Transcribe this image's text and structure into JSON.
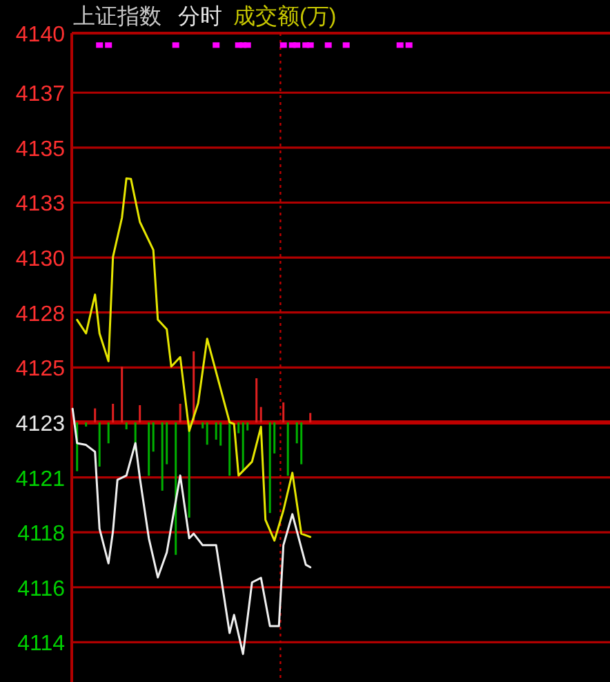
{
  "chart_data": {
    "type": "line",
    "title": "上证指数",
    "subtitle": "分时",
    "annotations": [
      "成交额(万)"
    ],
    "categories": [
      null,
      null,
      null,
      null,
      null,
      null,
      null,
      null,
      null,
      null,
      null,
      null,
      null,
      null,
      null,
      null,
      null,
      null,
      null,
      null,
      null,
      null,
      null,
      null,
      null,
      null,
      null,
      null,
      null,
      null,
      null,
      null,
      null,
      null,
      null,
      null,
      null,
      null,
      null,
      null,
      null,
      null,
      null,
      null,
      null,
      null,
      null,
      null,
      null,
      null,
      null,
      null,
      null,
      null,
      null,
      null,
      null,
      null,
      null,
      null,
      null,
      null,
      null,
      null,
      null,
      null,
      null,
      null,
      null,
      null,
      null,
      null,
      null,
      null,
      null,
      null,
      null,
      null,
      null,
      null,
      null,
      null,
      null,
      null,
      null,
      null,
      null,
      null,
      null,
      null,
      null,
      null,
      null,
      null,
      null,
      null,
      null,
      null,
      null,
      null,
      null,
      null,
      null,
      null,
      null,
      null,
      null,
      null,
      null,
      null,
      null,
      null,
      null,
      null,
      null,
      null,
      null,
      null,
      null,
      null
    ],
    "ylim": [
      4111.8,
      4140.02
    ],
    "yticks": [
      {
        "value": 4140.02,
        "label": "4140"
      },
      {
        "value": 4137.43,
        "label": "4137"
      },
      {
        "value": 4135.04,
        "label": "4135"
      },
      {
        "value": 4132.65,
        "label": "4133"
      },
      {
        "value": 4130.26,
        "label": "4130"
      },
      {
        "value": 4127.87,
        "label": "4128"
      },
      {
        "value": 4125.48,
        "label": "4125"
      },
      {
        "value": 4123.09,
        "label": "4123"
      },
      {
        "value": 4120.7,
        "label": "4121"
      },
      {
        "value": 4118.31,
        "label": "4118"
      },
      {
        "value": 4115.92,
        "label": "4116"
      },
      {
        "value": 4113.53,
        "label": "4114"
      }
    ],
    "tick_labels": "y",
    "grid": "y",
    "ref_lines": [
      {
        "axis": "y",
        "value": 4123.09,
        "color": "#c00000"
      }
    ],
    "series": [
      {
        "type": "bar",
        "values": [
          null,
          -2.12,
          null,
          -0.18,
          null,
          0.61,
          -1.92,
          null,
          -0.91,
          0.81,
          null,
          2.42,
          -0.3,
          null,
          -1.21,
          0.75,
          null,
          -2.32,
          -1.27,
          null,
          -2.97,
          -1.82,
          null,
          -5.76,
          0.81,
          null,
          -4.14,
          3.09,
          null,
          -0.26,
          -0.97,
          null,
          -0.75,
          -1.01,
          null,
          -2.32,
          null,
          -0.47,
          -2.12,
          -0.35,
          null,
          1.92,
          0.67,
          null,
          -3.94,
          -1.35,
          null,
          0.87,
          -2.32,
          null,
          -0.91,
          -1.82,
          null,
          0.41,
          null,
          null,
          null,
          null,
          null,
          null,
          null,
          null,
          null,
          null,
          null,
          null,
          null,
          null,
          null,
          null,
          null,
          null,
          null,
          null,
          null,
          null,
          null,
          null,
          null,
          null,
          null,
          null,
          null,
          null,
          null,
          null,
          null,
          null,
          null,
          null,
          null,
          null,
          null,
          null,
          null,
          null,
          null,
          null,
          null,
          null,
          null,
          null,
          null,
          null,
          null,
          null,
          null,
          null,
          null,
          null,
          null,
          null,
          null,
          null,
          null,
          null,
          null,
          null,
          null,
          null
        ],
        "base": [
          null,
          4123.09,
          null,
          4123.09,
          null,
          4123.09,
          4123.09,
          null,
          4123.09,
          4123.09,
          null,
          4123.09,
          4123.09,
          null,
          4123.09,
          4123.09,
          null,
          4123.09,
          4123.09,
          null,
          4123.09,
          4123.09,
          null,
          4123.09,
          4123.09,
          null,
          4123.09,
          4123.09,
          null,
          4123.09,
          4123.09,
          null,
          4123.09,
          4123.09,
          null,
          4123.09,
          null,
          4123.09,
          4123.09,
          4123.09,
          null,
          4123.09,
          4123.09,
          null,
          4123.09,
          4123.09,
          null,
          4123.09,
          4123.09,
          null,
          4123.09,
          4123.09,
          null,
          4123.09,
          null,
          null,
          null,
          null,
          null,
          null,
          null,
          null,
          null,
          null,
          null,
          null,
          null,
          null,
          null,
          null,
          null,
          null,
          null,
          null,
          null,
          null,
          null,
          null,
          null,
          null,
          null,
          null,
          null,
          null,
          null,
          null,
          null,
          null,
          null,
          null,
          null,
          null,
          null,
          null,
          null,
          null,
          null,
          null,
          null,
          null,
          null,
          null,
          null,
          null,
          null,
          null,
          null,
          null,
          null,
          null,
          null,
          null,
          null,
          null,
          null,
          null,
          null,
          null,
          null,
          null
        ],
        "colors": [
          null,
          "#00b000",
          null,
          "#00b000",
          null,
          "#e02020",
          "#00b000",
          null,
          "#00b000",
          "#e02020",
          null,
          "#e02020",
          "#00b000",
          null,
          "#00b000",
          "#e02020",
          null,
          "#00b000",
          "#00b000",
          null,
          "#00b000",
          "#00b000",
          null,
          "#00b000",
          "#e02020",
          null,
          "#00b000",
          "#e02020",
          null,
          "#00b000",
          "#00b000",
          null,
          "#00b000",
          "#00b000",
          null,
          "#00b000",
          null,
          "#00b000",
          "#00b000",
          "#00b000",
          null,
          "#e02020",
          "#e02020",
          null,
          "#00b000",
          "#00b000",
          null,
          "#e02020",
          "#00b000",
          null,
          "#00b000",
          "#00b000",
          null,
          "#e02020",
          null,
          null,
          null,
          null,
          null,
          null,
          null,
          null,
          null,
          null,
          null,
          null,
          null,
          null,
          null,
          null,
          null,
          null,
          null,
          null,
          null,
          null,
          null,
          null,
          null,
          null,
          null,
          null,
          null,
          null,
          null,
          null,
          null,
          null,
          null,
          null,
          null,
          null,
          null,
          null,
          null,
          null,
          null,
          null,
          null,
          null,
          null,
          null,
          null,
          null,
          null,
          null,
          null,
          null,
          null,
          null,
          null,
          null,
          null,
          null,
          null,
          null,
          null,
          null,
          null,
          null
        ]
      },
      {
        "color": "#f0f0f0",
        "values": [
          4123.68,
          4122.19,
          null,
          4122.11,
          null,
          4121.81,
          4118.47,
          null,
          4116.96,
          4118.35,
          4120.59,
          null,
          4120.78,
          null,
          4122.19,
          4120.67,
          null,
          4118.05,
          null,
          4116.35,
          null,
          4117.44,
          null,
          null,
          4120.78,
          null,
          4118.05,
          4118.25,
          null,
          4117.75,
          null,
          null,
          4117.75,
          null,
          null,
          4113.93,
          4114.72,
          null,
          4113.02,
          null,
          4116.13,
          null,
          4116.33,
          null,
          4114.23,
          null,
          4114.23,
          4117.75,
          null,
          4119.1,
          null,
          null,
          4116.9,
          4116.79,
          null,
          null,
          null,
          null,
          null,
          null,
          null,
          null,
          null,
          null,
          null,
          null,
          null,
          null,
          null,
          null,
          null,
          null,
          null,
          null,
          null,
          null,
          null,
          null,
          null,
          null,
          null,
          null,
          null,
          null,
          null,
          null,
          null,
          null,
          null,
          null,
          null,
          null,
          null,
          null,
          null,
          null,
          null,
          null,
          null,
          null,
          null,
          null,
          null,
          null,
          null,
          null,
          null,
          null,
          null,
          null,
          null,
          null,
          null,
          null,
          null,
          null,
          null,
          null,
          null,
          null
        ]
      },
      {
        "color": "#e6e600",
        "values": [
          null,
          4127.55,
          null,
          4126.96,
          null,
          4128.65,
          4126.96,
          null,
          4125.75,
          4130.29,
          null,
          4131.99,
          4133.7,
          4133.68,
          null,
          4131.81,
          null,
          null,
          4130.59,
          4127.56,
          null,
          4127.14,
          4125.52,
          null,
          4125.93,
          null,
          4122.72,
          null,
          4123.93,
          null,
          4126.73,
          null,
          null,
          null,
          null,
          4123.1,
          4123.02,
          4120.78,
          null,
          null,
          4121.38,
          null,
          4122.9,
          4118.85,
          null,
          4117.95,
          null,
          4119.26,
          null,
          4120.9,
          null,
          4118.25,
          null,
          4118.11,
          null,
          null,
          null,
          null,
          null,
          null,
          null,
          null,
          null,
          null,
          null,
          null,
          null,
          null,
          null,
          null,
          null,
          null,
          null,
          null,
          null,
          null,
          null,
          null,
          null,
          null,
          null,
          null,
          null,
          null,
          null,
          null,
          null,
          null,
          null,
          null,
          null,
          null,
          null,
          null,
          null,
          null,
          null,
          null,
          null,
          null,
          null,
          null,
          null,
          null,
          null,
          null,
          null,
          null,
          null,
          null,
          null,
          null,
          null,
          null,
          null,
          null,
          null,
          null,
          null,
          null
        ]
      },
      {
        "type": "scatter",
        "marker": "square",
        "color": "#ff00ff",
        "values": [
          null,
          null,
          null,
          null,
          null,
          null,
          4139.5,
          null,
          4139.5,
          null,
          null,
          null,
          null,
          null,
          null,
          null,
          null,
          null,
          null,
          null,
          null,
          null,
          null,
          4139.5,
          null,
          null,
          null,
          null,
          null,
          null,
          null,
          null,
          4139.5,
          null,
          null,
          null,
          null,
          4139.5,
          4139.5,
          4139.5,
          null,
          null,
          null,
          null,
          null,
          null,
          null,
          4139.5,
          null,
          4139.5,
          4139.5,
          null,
          4139.5,
          4139.5,
          null,
          null,
          null,
          4139.5,
          null,
          null,
          null,
          4139.5,
          null,
          null,
          null,
          null,
          null,
          null,
          null,
          null,
          null,
          null,
          null,
          4139.5,
          null,
          4139.5,
          null,
          null,
          null,
          null,
          null,
          null,
          null,
          null,
          null,
          null,
          null,
          null,
          null,
          null,
          null,
          null,
          null,
          null,
          null,
          null,
          null,
          null,
          null,
          null,
          null,
          null,
          null,
          null,
          null,
          null,
          null,
          null,
          null,
          null,
          null,
          null,
          null,
          null,
          null,
          null,
          null,
          null,
          null,
          null
        ]
      }
    ]
  }
}
